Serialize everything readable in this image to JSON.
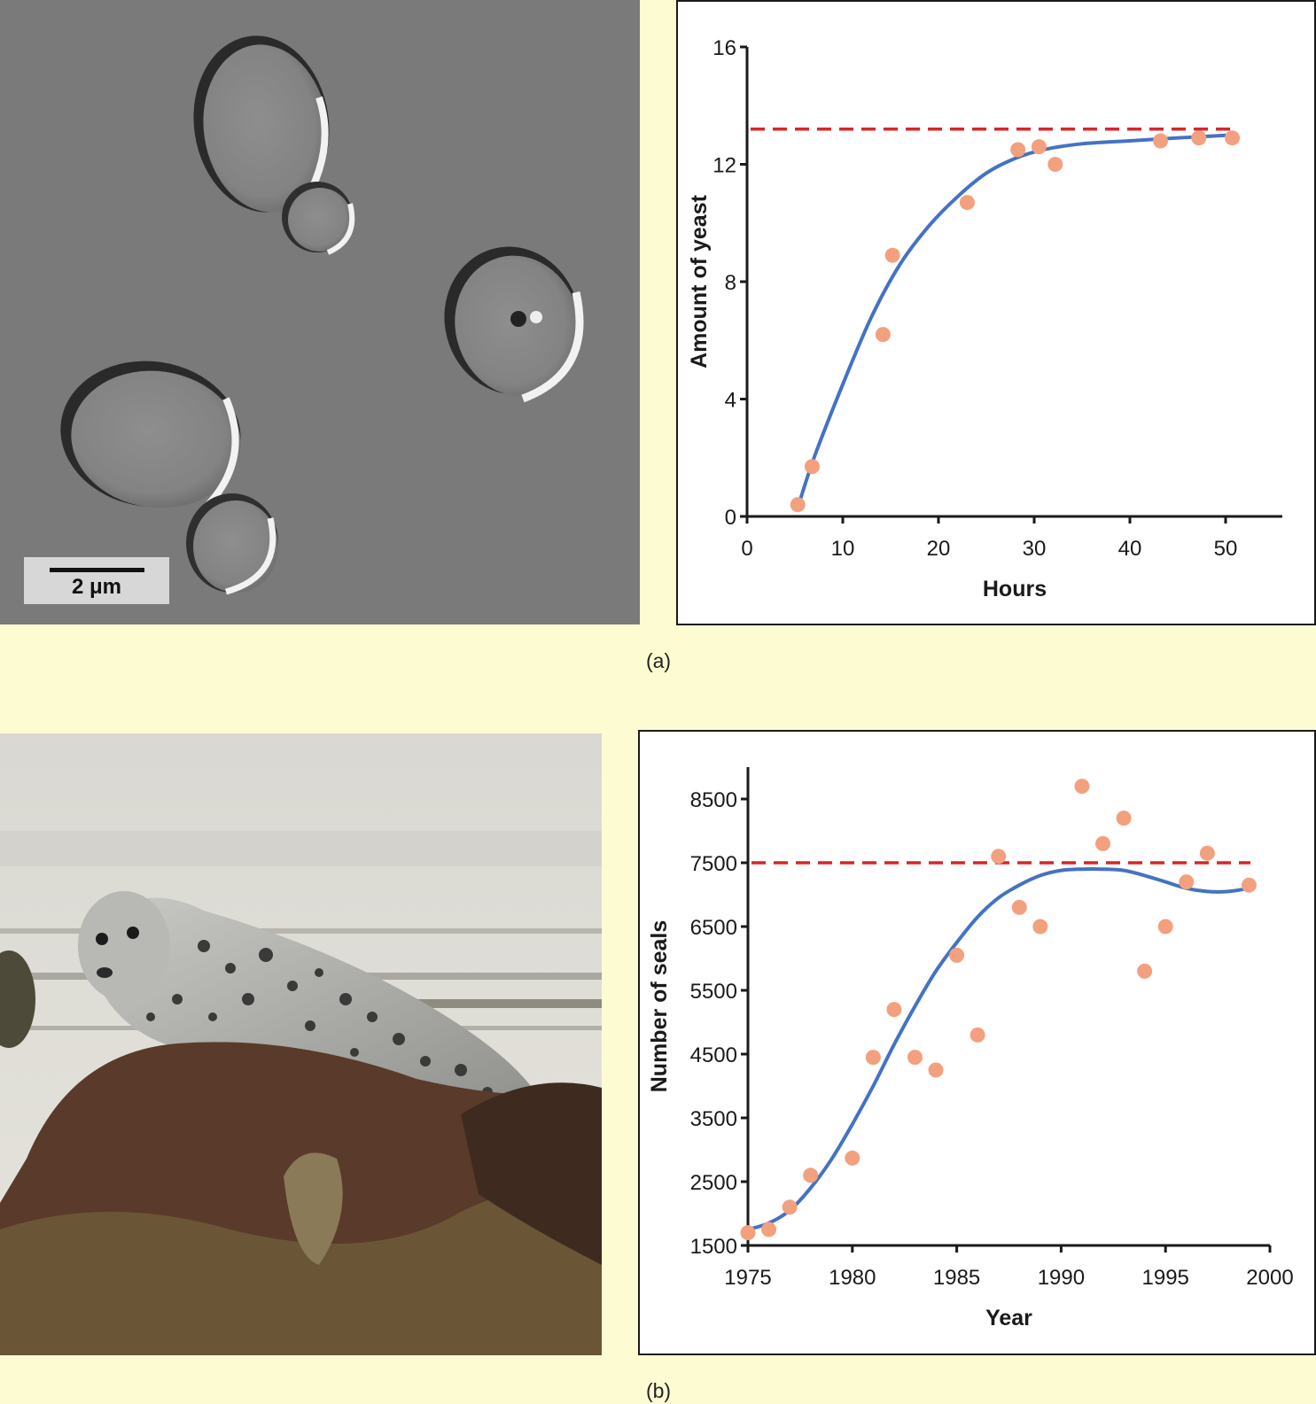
{
  "panels": {
    "a": {
      "caption": "(a)",
      "scale_bar_label": "2 μm"
    },
    "b": {
      "caption": "(b)"
    }
  },
  "chart_data": [
    {
      "type": "scatter",
      "xlabel": "Hours",
      "ylabel": "Amount of yeast",
      "xlim": [
        0,
        55
      ],
      "ylim": [
        0,
        16
      ],
      "xticks": [
        0,
        10,
        20,
        30,
        40,
        50
      ],
      "yticks": [
        0,
        4,
        8,
        12,
        16
      ],
      "x_tick_labels": [
        "0",
        "10",
        "20",
        "30",
        "40",
        "50"
      ],
      "y_tick_labels": [
        "0",
        "4",
        "8",
        "12",
        "16"
      ],
      "grid": false,
      "carrying_capacity": 13.2,
      "points": {
        "x": [
          5.3,
          6.8,
          14.2,
          15.2,
          23.0,
          28.3,
          30.5,
          32.2,
          43.2,
          47.2,
          50.7
        ],
        "y": [
          0.4,
          1.7,
          6.2,
          8.9,
          10.7,
          12.5,
          12.6,
          12.0,
          12.8,
          12.9,
          12.9
        ]
      },
      "fit_curve": {
        "x": [
          5.3,
          7,
          10,
          13,
          16,
          19,
          22,
          25,
          28,
          31,
          35,
          40,
          45,
          50.7
        ],
        "y": [
          0.3,
          2.0,
          4.5,
          6.8,
          8.6,
          9.9,
          10.9,
          11.7,
          12.2,
          12.5,
          12.7,
          12.8,
          12.9,
          13.0
        ]
      },
      "colors": {
        "points": "#f3a07f",
        "curve": "#4472c4",
        "capacity_line": "#d62728"
      }
    },
    {
      "type": "scatter",
      "xlabel": "Year",
      "ylabel": "Number of seals",
      "xlim": [
        1975,
        2000
      ],
      "ylim": [
        1500,
        9000
      ],
      "xticks": [
        1975,
        1980,
        1985,
        1990,
        1995,
        2000
      ],
      "yticks": [
        1500,
        2500,
        3500,
        4500,
        5500,
        6500,
        7500,
        8500
      ],
      "x_tick_labels": [
        "1975",
        "1980",
        "1985",
        "1990",
        "1995",
        "2000"
      ],
      "y_tick_labels": [
        "1500",
        "2500",
        "3500",
        "4500",
        "5500",
        "6500",
        "7500",
        "8500"
      ],
      "grid": false,
      "carrying_capacity": 7500,
      "points": {
        "x": [
          1975,
          1976,
          1977,
          1978,
          1980,
          1981,
          1982,
          1983,
          1984,
          1985,
          1986,
          1987,
          1988,
          1989,
          1991,
          1992,
          1993,
          1994,
          1995,
          1996,
          1997,
          1999
        ],
        "y": [
          1700,
          1750,
          2100,
          2600,
          2870,
          4450,
          5200,
          4450,
          4250,
          6050,
          4800,
          7600,
          6800,
          6500,
          8700,
          7800,
          8200,
          5800,
          6500,
          7200,
          7650,
          7150
        ]
      },
      "fit_curve": {
        "x": [
          1975,
          1976,
          1977,
          1978,
          1979,
          1980,
          1981,
          1982,
          1983,
          1984,
          1985,
          1986,
          1987,
          1988,
          1989,
          1990,
          1991,
          1992,
          1993,
          1994,
          1995,
          1996,
          1997,
          1998,
          1999
        ],
        "y": [
          1750,
          1850,
          2050,
          2400,
          2850,
          3400,
          4000,
          4650,
          5250,
          5800,
          6250,
          6650,
          6950,
          7150,
          7300,
          7380,
          7400,
          7400,
          7380,
          7300,
          7200,
          7100,
          7050,
          7050,
          7100
        ]
      },
      "colors": {
        "points": "#f3a07f",
        "curve": "#4472c4",
        "capacity_line": "#d62728"
      }
    }
  ]
}
